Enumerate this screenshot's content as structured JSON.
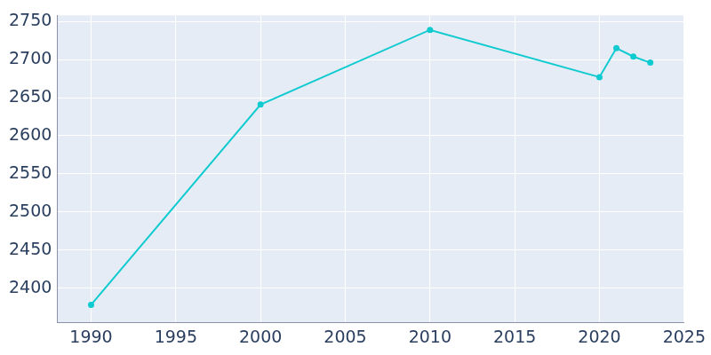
{
  "chart_data": {
    "type": "line",
    "x": [
      1990,
      2000,
      2010,
      2020,
      2021,
      2022,
      2023
    ],
    "values": [
      2378,
      2641,
      2739,
      2677,
      2715,
      2704,
      2696
    ],
    "color": "#0fcbd0",
    "marker": "circle",
    "xlim": [
      1988,
      2025
    ],
    "xticks": [
      1990,
      1995,
      2000,
      2005,
      2010,
      2015,
      2020,
      2025
    ],
    "ylim": [
      2355,
      2758
    ],
    "yticks": [
      2400,
      2450,
      2500,
      2550,
      2600,
      2650,
      2700,
      2750
    ],
    "grid": true
  }
}
